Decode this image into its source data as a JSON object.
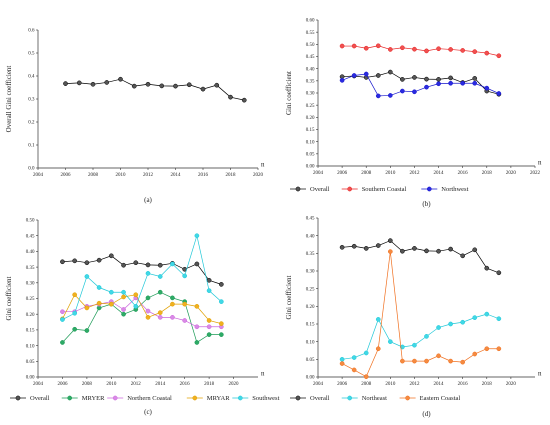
{
  "chart_data": [
    {
      "type": "line",
      "label": "(a)",
      "ylabel": "Overall Gini coefficient",
      "xlabel": "n",
      "xlim": [
        2004,
        2020
      ],
      "ylim": [
        0,
        0.6
      ],
      "xticks": [
        2004,
        2006,
        2008,
        2010,
        2012,
        2014,
        2016,
        2018,
        2020
      ],
      "yticks": [
        0,
        0.1,
        0.2,
        0.3,
        0.4,
        0.5,
        0.6
      ],
      "ytick_decimals": 1,
      "legend_position": "none",
      "x": [
        2006,
        2007,
        2008,
        2009,
        2010,
        2011,
        2012,
        2013,
        2014,
        2015,
        2016,
        2017,
        2018,
        2019
      ],
      "series": [
        {
          "name": "",
          "color": "#000000",
          "fill": "#555555",
          "values": [
            0.367,
            0.37,
            0.364,
            0.372,
            0.386,
            0.356,
            0.364,
            0.357,
            0.356,
            0.362,
            0.343,
            0.36,
            0.308,
            0.295
          ]
        }
      ]
    },
    {
      "type": "line",
      "label": "(b)",
      "ylabel": "Gini coefficient",
      "xlabel": "n",
      "xlim": [
        2004,
        2022
      ],
      "ylim": [
        0,
        0.6
      ],
      "xticks": [
        2004,
        2006,
        2008,
        2010,
        2012,
        2014,
        2016,
        2018,
        2020,
        2022
      ],
      "yticks": [
        0,
        0.05,
        0.1,
        0.15,
        0.2,
        0.25,
        0.3,
        0.35,
        0.4,
        0.45,
        0.5,
        0.55,
        0.6
      ],
      "ytick_decimals": 2,
      "legend_position": "bottom",
      "x": [
        2006,
        2007,
        2008,
        2009,
        2010,
        2011,
        2012,
        2013,
        2014,
        2015,
        2016,
        2017,
        2018,
        2019
      ],
      "series": [
        {
          "name": "Overall",
          "color": "#000000",
          "fill": "#555555",
          "values": [
            0.367,
            0.37,
            0.364,
            0.372,
            0.386,
            0.356,
            0.364,
            0.357,
            0.356,
            0.362,
            0.343,
            0.36,
            0.308,
            0.295
          ]
        },
        {
          "name": "Southern Coastal",
          "color": "#e62020",
          "fill": "#f05050",
          "values": [
            0.493,
            0.493,
            0.484,
            0.494,
            0.479,
            0.486,
            0.48,
            0.473,
            0.482,
            0.479,
            0.475,
            0.47,
            0.464,
            0.453
          ]
        },
        {
          "name": "Northwest",
          "color": "#1515cc",
          "fill": "#2a2ae0",
          "values": [
            0.352,
            0.372,
            0.378,
            0.288,
            0.29,
            0.308,
            0.305,
            0.324,
            0.338,
            0.34,
            0.34,
            0.34,
            0.32,
            0.298
          ]
        }
      ]
    },
    {
      "type": "line",
      "label": "(c)",
      "ylabel": "Gini coefficient",
      "xlabel": "n",
      "xlim": [
        2004,
        2022
      ],
      "ylim": [
        0,
        0.5
      ],
      "xticks": [
        2004,
        2006,
        2008,
        2010,
        2012,
        2014,
        2016,
        2018,
        2020
      ],
      "yticks": [
        0,
        0.05,
        0.1,
        0.15,
        0.2,
        0.25,
        0.3,
        0.35,
        0.4,
        0.45,
        0.5
      ],
      "ytick_decimals": 2,
      "legend_position": "bottom",
      "x": [
        2006,
        2007,
        2008,
        2009,
        2010,
        2011,
        2012,
        2013,
        2014,
        2015,
        2016,
        2017,
        2018,
        2019
      ],
      "series": [
        {
          "name": "Overall",
          "color": "#000000",
          "fill": "#555555",
          "values": [
            0.367,
            0.37,
            0.364,
            0.372,
            0.386,
            0.356,
            0.364,
            0.357,
            0.356,
            0.362,
            0.343,
            0.36,
            0.308,
            0.295
          ]
        },
        {
          "name": "MRYER",
          "color": "#1a9a55",
          "fill": "#2eaa66",
          "values": [
            0.11,
            0.152,
            0.148,
            0.22,
            0.232,
            0.2,
            0.215,
            0.252,
            0.27,
            0.252,
            0.24,
            0.11,
            0.135,
            0.135
          ]
        },
        {
          "name": "Northern Coastal",
          "color": "#cc66dd",
          "fill": "#d98ae6",
          "values": [
            0.208,
            0.208,
            0.225,
            0.232,
            0.24,
            0.215,
            0.252,
            0.21,
            0.19,
            0.19,
            0.18,
            0.16,
            0.16,
            0.16
          ]
        },
        {
          "name": "MRYAR",
          "color": "#e0a000",
          "fill": "#f0b020",
          "values": [
            0.185,
            0.262,
            0.22,
            0.235,
            0.232,
            0.255,
            0.262,
            0.19,
            0.205,
            0.232,
            0.232,
            0.225,
            0.18,
            0.17
          ]
        },
        {
          "name": "Southwest",
          "color": "#20c8d8",
          "fill": "#40d8e6",
          "values": [
            0.183,
            0.203,
            0.32,
            0.285,
            0.27,
            0.27,
            0.225,
            0.33,
            0.32,
            0.36,
            0.322,
            0.45,
            0.275,
            0.24
          ]
        }
      ]
    },
    {
      "type": "line",
      "label": "(d)",
      "ylabel": "Gini coefficient",
      "xlabel": "n",
      "xlim": [
        2004,
        2022
      ],
      "ylim": [
        0,
        0.45
      ],
      "xticks": [
        2004,
        2006,
        2008,
        2010,
        2012,
        2014,
        2016,
        2018,
        2020
      ],
      "yticks": [
        0,
        0.05,
        0.1,
        0.15,
        0.2,
        0.25,
        0.3,
        0.35,
        0.4,
        0.45
      ],
      "ytick_decimals": 2,
      "legend_position": "bottom",
      "x": [
        2006,
        2007,
        2008,
        2009,
        2010,
        2011,
        2012,
        2013,
        2014,
        2015,
        2016,
        2017,
        2018,
        2019
      ],
      "series": [
        {
          "name": "Overall",
          "color": "#000000",
          "fill": "#555555",
          "values": [
            0.367,
            0.37,
            0.364,
            0.372,
            0.386,
            0.356,
            0.364,
            0.357,
            0.356,
            0.362,
            0.343,
            0.36,
            0.308,
            0.295
          ]
        },
        {
          "name": "Northeast",
          "color": "#20c8d8",
          "fill": "#40d8e6",
          "values": [
            0.05,
            0.055,
            0.068,
            0.163,
            0.1,
            0.085,
            0.09,
            0.115,
            0.14,
            0.15,
            0.155,
            0.168,
            0.178,
            0.165
          ]
        },
        {
          "name": "Eastern Coastal",
          "color": "#f07020",
          "fill": "#f58a40",
          "values": [
            0.038,
            0.02,
            0.001,
            0.08,
            0.355,
            0.045,
            0.045,
            0.045,
            0.06,
            0.045,
            0.042,
            0.065,
            0.08,
            0.08
          ]
        }
      ]
    }
  ]
}
